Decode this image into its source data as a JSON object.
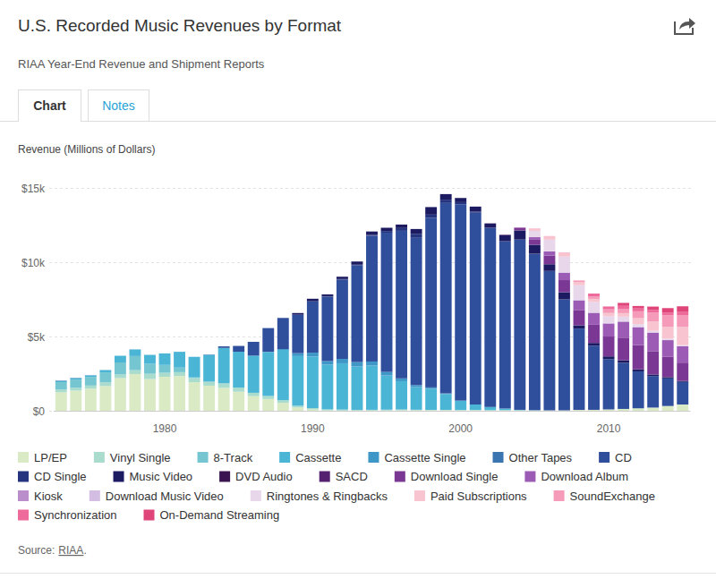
{
  "tabs": [
    "Chart",
    "Notes"
  ],
  "source": {
    "prefix": "Source:",
    "link": "RIAA",
    "suffix": "."
  },
  "chart_data": {
    "type": "bar",
    "title": "U.S. Recorded Music Revenues by Format",
    "subtitle": "RIAA Year-End Revenue and Shipment Reports",
    "ylabel": "Revenue (Millions of Dollars)",
    "x": [
      1973,
      1974,
      1975,
      1976,
      1977,
      1978,
      1979,
      1980,
      1981,
      1982,
      1983,
      1984,
      1985,
      1986,
      1987,
      1988,
      1989,
      1990,
      1991,
      1992,
      1993,
      1994,
      1995,
      1996,
      1997,
      1998,
      1999,
      2000,
      2001,
      2002,
      2003,
      2004,
      2005,
      2006,
      2007,
      2008,
      2009,
      2010,
      2011,
      2012,
      2013,
      2014,
      2015
    ],
    "xlim": [
      1972.5,
      2015.5
    ],
    "xticks": [
      1980,
      1990,
      2000,
      2010
    ],
    "ylim": [
      0,
      15000
    ],
    "yticks": [
      {
        "value": 0,
        "label": "$0"
      },
      {
        "value": 5000,
        "label": "$5k"
      },
      {
        "value": 10000,
        "label": "$10k"
      },
      {
        "value": 15000,
        "label": "$15k"
      }
    ],
    "grid": true,
    "stacked": true,
    "legend": "bottom",
    "series": [
      {
        "name": "LP/EP",
        "color": "#d9eac5",
        "values": [
          1246,
          1356,
          1485,
          1663,
          2196,
          2473,
          2136,
          2290,
          2342,
          1925,
          1690,
          1548,
          1281,
          983,
          793,
          532,
          220,
          87,
          29,
          14,
          11,
          18,
          25,
          37,
          33,
          34,
          32,
          28,
          27,
          21,
          22,
          19,
          14,
          16,
          23,
          57,
          60,
          89,
          119,
          163,
          211,
          315,
          416
        ]
      },
      {
        "name": "Vinyl Single",
        "color": "#a9dccd",
        "values": [
          190,
          194,
          211,
          245,
          245,
          260,
          354,
          269,
          256,
          283,
          269,
          299,
          281,
          228,
          204,
          180,
          116,
          94,
          64,
          66,
          51,
          47,
          47,
          48,
          35,
          26,
          28,
          26,
          31,
          24,
          21,
          20,
          13,
          11,
          4,
          3,
          3,
          2,
          5,
          3,
          4,
          6,
          6
        ]
      },
      {
        "name": "8-Track",
        "color": "#75c6d1",
        "values": [
          489,
          549,
          584,
          678,
          811,
          948,
          669,
          526,
          309,
          36,
          0,
          0,
          0,
          0,
          0,
          0,
          0,
          0,
          0,
          0,
          0,
          0,
          0,
          0,
          0,
          0,
          0,
          0,
          0,
          0,
          0,
          0,
          0,
          0,
          0,
          0,
          0,
          0,
          0,
          0,
          0,
          0,
          0
        ]
      },
      {
        "name": "Cassette",
        "color": "#4bb5d6",
        "values": [
          76,
          87,
          99,
          146,
          450,
          449,
          604,
          776,
          1062,
          1385,
          1811,
          2384,
          2412,
          2500,
          2960,
          3385,
          3346,
          3472,
          3019,
          3116,
          2916,
          2977,
          2304,
          1905,
          1523,
          1420,
          1062,
          626,
          363,
          210,
          108,
          24,
          13,
          3,
          3,
          0,
          0,
          0,
          0,
          0,
          0,
          0,
          0
        ]
      },
      {
        "name": "Cassette Single",
        "color": "#3f97c7",
        "values": [
          0,
          0,
          0,
          0,
          0,
          0,
          0,
          0,
          0,
          0,
          0,
          0,
          0,
          0,
          14,
          57,
          194,
          257,
          230,
          298,
          299,
          274,
          236,
          190,
          133,
          94,
          48,
          4,
          0,
          0,
          0,
          0,
          0,
          0,
          0,
          0,
          0,
          0,
          0,
          0,
          0,
          0,
          0
        ]
      },
      {
        "name": "Other Tapes",
        "color": "#3a74b1",
        "values": [
          30,
          25,
          15,
          10,
          0,
          0,
          0,
          0,
          0,
          0,
          0,
          0,
          0,
          0,
          0,
          0,
          0,
          0,
          0,
          0,
          0,
          0,
          0,
          0,
          0,
          0,
          0,
          0,
          0,
          0,
          0,
          0,
          0,
          0,
          0,
          0,
          0,
          0,
          0,
          0,
          0,
          0,
          0
        ]
      },
      {
        "name": "CD",
        "color": "#2f4e9c",
        "values": [
          0,
          0,
          0,
          0,
          0,
          0,
          0,
          0,
          0,
          0,
          17,
          103,
          390,
          930,
          1594,
          2090,
          2588,
          3452,
          4338,
          5327,
          6511,
          8465,
          9377,
          9935,
          9915,
          11416,
          12816,
          13215,
          12909,
          12044,
          11233,
          11447,
          10520,
          9373,
          7452,
          5471,
          4318,
          3389,
          3101,
          2486,
          2123,
          1856,
          1520
        ]
      },
      {
        "name": "CD Single",
        "color": "#24347f",
        "values": [
          0,
          0,
          0,
          0,
          0,
          0,
          0,
          0,
          0,
          0,
          0,
          0,
          0,
          0,
          0,
          9,
          0,
          6,
          35,
          45,
          45,
          56,
          110,
          184,
          273,
          213,
          222,
          143,
          79,
          20,
          36,
          15,
          10,
          7,
          12,
          3,
          1,
          2,
          1,
          1,
          0,
          0,
          0
        ]
      },
      {
        "name": "Music Video",
        "color": "#1c1b62",
        "values": [
          0,
          0,
          0,
          0,
          0,
          0,
          0,
          0,
          0,
          0,
          0,
          0,
          0,
          0,
          0,
          0,
          115,
          172,
          118,
          157,
          214,
          231,
          220,
          236,
          323,
          508,
          377,
          281,
          329,
          288,
          400,
          607,
          602,
          452,
          485,
          219,
          185,
          180,
          174,
          140,
          105,
          90,
          70
        ]
      },
      {
        "name": "DVD Audio",
        "color": "#3a1450",
        "values": [
          0,
          0,
          0,
          0,
          0,
          0,
          0,
          0,
          0,
          0,
          0,
          0,
          0,
          0,
          0,
          0,
          0,
          0,
          0,
          0,
          0,
          0,
          0,
          0,
          0,
          0,
          0,
          0,
          6,
          9,
          8,
          7,
          3,
          2,
          3,
          0,
          0,
          0,
          0,
          0,
          0,
          0,
          0
        ]
      },
      {
        "name": "SACD",
        "color": "#55206f",
        "values": [
          0,
          0,
          0,
          0,
          0,
          0,
          0,
          0,
          0,
          0,
          0,
          0,
          0,
          0,
          0,
          0,
          0,
          0,
          0,
          0,
          0,
          0,
          0,
          0,
          0,
          0,
          0,
          0,
          0,
          0,
          26,
          16,
          10,
          4,
          0,
          0,
          0,
          0,
          0,
          0,
          0,
          0,
          0
        ]
      },
      {
        "name": "Download Single",
        "color": "#7a3894",
        "values": [
          0,
          0,
          0,
          0,
          0,
          0,
          0,
          0,
          0,
          0,
          0,
          0,
          0,
          0,
          0,
          0,
          0,
          0,
          0,
          0,
          0,
          0,
          0,
          0,
          0,
          0,
          0,
          0,
          0,
          0,
          0,
          139,
          363,
          581,
          811,
          1032,
          1224,
          1336,
          1524,
          1624,
          1569,
          1363,
          1230
        ]
      },
      {
        "name": "Download Album",
        "color": "#9c5bb5",
        "values": [
          0,
          0,
          0,
          0,
          0,
          0,
          0,
          0,
          0,
          0,
          0,
          0,
          0,
          0,
          0,
          0,
          0,
          0,
          0,
          0,
          0,
          0,
          0,
          0,
          0,
          0,
          0,
          0,
          0,
          0,
          0,
          46,
          136,
          275,
          497,
          635,
          779,
          872,
          1071,
          1199,
          1234,
          1124,
          1100
        ]
      },
      {
        "name": "Kiosk",
        "color": "#b98ecb",
        "values": [
          0,
          0,
          0,
          0,
          0,
          0,
          0,
          0,
          0,
          0,
          0,
          0,
          0,
          0,
          0,
          0,
          0,
          0,
          0,
          0,
          0,
          0,
          0,
          0,
          0,
          0,
          0,
          0,
          0,
          0,
          0,
          0,
          0,
          1,
          3,
          3,
          6,
          6,
          4,
          2,
          2,
          2,
          2
        ]
      },
      {
        "name": "Download Music Video",
        "color": "#d3bde2",
        "values": [
          0,
          0,
          0,
          0,
          0,
          0,
          0,
          0,
          0,
          0,
          0,
          0,
          0,
          0,
          0,
          0,
          0,
          0,
          0,
          0,
          0,
          0,
          0,
          0,
          0,
          0,
          0,
          0,
          0,
          0,
          0,
          0,
          2,
          19,
          29,
          51,
          50,
          45,
          57,
          49,
          39,
          33,
          20
        ]
      },
      {
        "name": "Ringtones & Ringbacks",
        "color": "#e8d6ea",
        "values": [
          0,
          0,
          0,
          0,
          0,
          0,
          0,
          0,
          0,
          0,
          0,
          0,
          0,
          0,
          0,
          0,
          0,
          0,
          0,
          0,
          0,
          0,
          0,
          0,
          0,
          0,
          0,
          0,
          0,
          0,
          0,
          0,
          422,
          774,
          1056,
          977,
          702,
          448,
          277,
          168,
          99,
          66,
          58
        ]
      },
      {
        "name": "Paid Subscriptions",
        "color": "#f7c4cf",
        "values": [
          0,
          0,
          0,
          0,
          0,
          0,
          0,
          0,
          0,
          0,
          0,
          0,
          0,
          0,
          0,
          0,
          0,
          0,
          0,
          0,
          0,
          0,
          0,
          0,
          0,
          0,
          0,
          0,
          0,
          0,
          0,
          0,
          149,
          207,
          234,
          221,
          206,
          212,
          241,
          399,
          628,
          799,
          1221
        ]
      },
      {
        "name": "SoundExchange",
        "color": "#f59ab8",
        "values": [
          0,
          0,
          0,
          0,
          0,
          0,
          0,
          0,
          0,
          0,
          0,
          0,
          0,
          0,
          0,
          0,
          0,
          0,
          0,
          0,
          0,
          0,
          0,
          0,
          0,
          0,
          0,
          0,
          0,
          0,
          0,
          7,
          20,
          33,
          36,
          100,
          155,
          249,
          292,
          462,
          590,
          773,
          803
        ]
      },
      {
        "name": "Synchronization",
        "color": "#ee6a9a",
        "values": [
          0,
          0,
          0,
          0,
          0,
          0,
          0,
          0,
          0,
          0,
          0,
          0,
          0,
          0,
          0,
          0,
          0,
          0,
          0,
          0,
          0,
          0,
          0,
          0,
          0,
          0,
          0,
          0,
          0,
          0,
          0,
          0,
          0,
          0,
          0,
          0,
          200,
          190,
          196,
          189,
          190,
          189,
          202
        ]
      },
      {
        "name": "On-Demand Streaming",
        "color": "#df4578",
        "values": [
          0,
          0,
          0,
          0,
          0,
          0,
          0,
          0,
          0,
          0,
          0,
          0,
          0,
          0,
          0,
          0,
          0,
          0,
          0,
          0,
          0,
          0,
          0,
          0,
          0,
          0,
          0,
          0,
          0,
          0,
          0,
          0,
          0,
          0,
          0,
          0,
          0,
          0,
          200,
          170,
          220,
          295,
          385
        ]
      }
    ]
  }
}
